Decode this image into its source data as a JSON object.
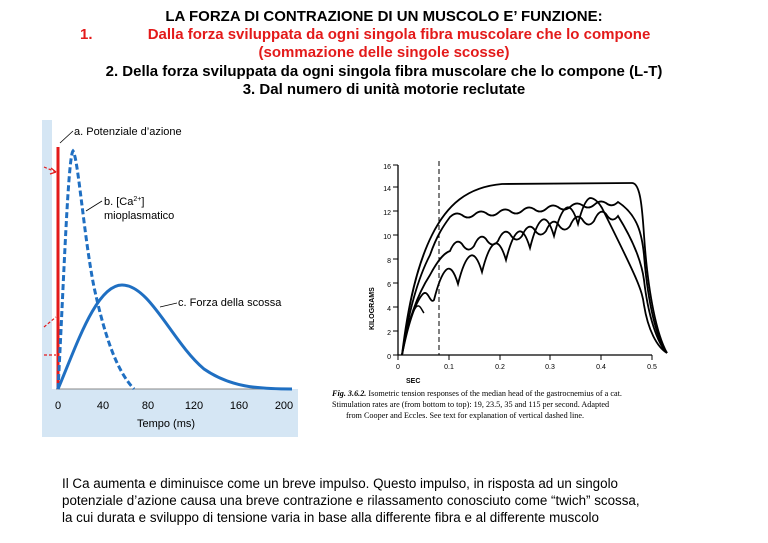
{
  "heading": {
    "line1": "LA FORZA DI CONTRAZIONE DI UN MUSCOLO E’ FUNZIONE:",
    "item1_num": "1.",
    "item1_a": "Dalla forza sviluppata da ogni singola fibra muscolare che lo compone",
    "item1_b": "(sommazione delle singole scosse)",
    "item2": "2. Della forza sviluppata da ogni singola fibra muscolare che lo compone (L-T)",
    "item3": "3. Dal numero di unità motorie reclutate"
  },
  "left_figure": {
    "label_a": "a. Potenziale d’azione",
    "label_b1": "b. [Ca",
    "label_b_sup": "2+",
    "label_b2": "]",
    "label_b3": "mioplasmatico",
    "label_c": "c. Forza della scossa",
    "xlabel": "Tempo (ms)",
    "xticks": [
      "0",
      "40",
      "80",
      "120",
      "160",
      "200"
    ],
    "colors": {
      "action_potential": "#e31a1a",
      "calcium": "#1f6fc2",
      "force": "#1f6fc2",
      "background": "#d5e6f4"
    }
  },
  "right_figure": {
    "ylabel": "KILOGRAMS",
    "xlabel": "SEC",
    "yticks": [
      "0",
      "2",
      "4",
      "6",
      "8",
      "10",
      "12",
      "14",
      "16"
    ],
    "xticks": [
      "0",
      "0.1",
      "0.2",
      "0.3",
      "0.4",
      "0.5"
    ],
    "caption_fig": "Fig. 3.6.2.",
    "caption_1": "Isometric tension responses of the median head of the gastrocnemius of a cat.",
    "caption_2": "Stimulation rates are (from bottom to top): 19, 23.5, 35 and 115 per second. Adapted",
    "caption_3": "from Cooper and Eccles. See text for explanation of vertical dashed line."
  },
  "paragraph": {
    "line1": "Il Ca aumenta e diminuisce come un breve impulso. Questo impulso, in risposta ad un singolo",
    "line2": "potenziale d’azione causa una breve contrazione e rilassamento conosciuto come “twich” scossa,",
    "line3": "la cui durata e sviluppo di tensione varia in base alla differente fibra e al differente muscolo"
  }
}
